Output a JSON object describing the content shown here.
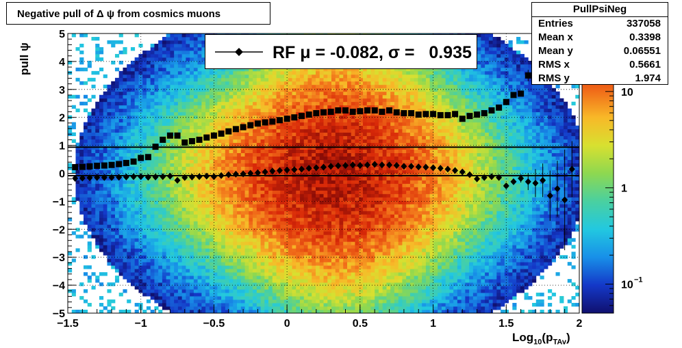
{
  "chart_data": {
    "type": "heatmap",
    "title": "Negative pull of Δ ψ from cosmics muons",
    "xlabel_main": "Log",
    "xlabel_sub": "10",
    "xlabel_rest": "(p",
    "xlabel_sub2": "TAv",
    "xlabel_close": ")",
    "ylabel": "pull ψ",
    "xlim": [
      -1.5,
      2
    ],
    "ylim": [
      -5,
      5
    ],
    "x_ticks": [
      -1.5,
      -1,
      -0.5,
      0,
      0.5,
      1,
      1.5,
      2
    ],
    "y_ticks": [
      -5,
      -4,
      -3,
      -2,
      -1,
      0,
      1,
      2,
      3,
      4,
      5
    ],
    "x_tick_labels": [
      "−1.5",
      "−1",
      "−0.5",
      "0",
      "0.5",
      "1",
      "1.5",
      "2"
    ],
    "y_tick_labels": [
      "−5",
      "−4",
      "−3",
      "−2",
      "−1",
      "0",
      "1",
      "2",
      "3",
      "4",
      "5"
    ],
    "color_scale": {
      "type": "log",
      "range": [
        0.05,
        40
      ],
      "tick_values": [
        0.1,
        1,
        10
      ],
      "tick_labels": [
        {
          "base": "10",
          "exp": "−1"
        },
        {
          "base": "1",
          "exp": ""
        },
        {
          "base": "10",
          "exp": ""
        }
      ]
    },
    "grid": true,
    "series": [
      {
        "marker": "diamond",
        "x": [
          -1.45,
          -1.4,
          -1.35,
          -1.3,
          -1.25,
          -1.2,
          -1.15,
          -1.1,
          -1.05,
          -1.0,
          -0.95,
          -0.9,
          -0.85,
          -0.8,
          -0.75,
          -0.7,
          -0.65,
          -0.6,
          -0.55,
          -0.5,
          -0.45,
          -0.4,
          -0.35,
          -0.3,
          -0.25,
          -0.2,
          -0.15,
          -0.1,
          -0.05,
          0.0,
          0.05,
          0.1,
          0.15,
          0.2,
          0.25,
          0.3,
          0.35,
          0.4,
          0.45,
          0.5,
          0.55,
          0.6,
          0.65,
          0.7,
          0.75,
          0.8,
          0.85,
          0.9,
          0.95,
          1.0,
          1.05,
          1.1,
          1.15,
          1.2,
          1.25,
          1.3,
          1.35,
          1.4,
          1.45,
          1.5,
          1.55,
          1.6,
          1.65,
          1.7,
          1.75,
          1.8,
          1.85,
          1.9,
          1.95
        ],
        "y": [
          -0.18,
          -0.17,
          -0.16,
          -0.15,
          -0.15,
          -0.15,
          -0.14,
          -0.13,
          -0.12,
          -0.12,
          -0.14,
          -0.13,
          -0.12,
          -0.1,
          -0.25,
          -0.15,
          -0.13,
          -0.12,
          -0.1,
          -0.12,
          -0.08,
          -0.05,
          -0.03,
          -0.02,
          0.0,
          0.02,
          0.05,
          0.08,
          0.1,
          0.12,
          0.13,
          0.15,
          0.18,
          0.2,
          0.22,
          0.25,
          0.27,
          0.28,
          0.3,
          0.28,
          0.3,
          0.32,
          0.3,
          0.3,
          0.28,
          0.25,
          0.25,
          0.23,
          0.22,
          0.2,
          0.18,
          0.15,
          0.1,
          0.05,
          -0.05,
          -0.2,
          -0.15,
          -0.12,
          -0.15,
          -0.45,
          -0.3,
          -0.18,
          -0.3,
          -0.35,
          -0.25,
          -0.8,
          -0.55,
          -0.95,
          0.15
        ],
        "y_err": [
          0,
          0,
          0,
          0,
          0,
          0,
          0,
          0,
          0,
          0,
          0,
          0,
          0,
          0,
          0,
          0,
          0,
          0,
          0,
          0,
          0,
          0,
          0,
          0,
          0,
          0,
          0,
          0,
          0,
          0,
          0,
          0,
          0,
          0,
          0,
          0,
          0,
          0,
          0,
          0,
          0,
          0,
          0,
          0,
          0,
          0,
          0,
          0,
          0,
          0,
          0,
          0,
          0,
          0,
          0,
          0,
          0,
          0,
          0,
          0.1,
          0.1,
          0.15,
          0.3,
          0.5,
          0.6,
          0.9,
          1.0,
          1.8,
          1.0
        ]
      },
      {
        "marker": "square",
        "x": [
          -1.45,
          -1.4,
          -1.35,
          -1.3,
          -1.25,
          -1.2,
          -1.15,
          -1.1,
          -1.05,
          -1.0,
          -0.95,
          -0.9,
          -0.85,
          -0.8,
          -0.75,
          -0.7,
          -0.65,
          -0.6,
          -0.55,
          -0.5,
          -0.45,
          -0.4,
          -0.35,
          -0.3,
          -0.25,
          -0.2,
          -0.15,
          -0.1,
          -0.05,
          0.0,
          0.05,
          0.1,
          0.15,
          0.2,
          0.25,
          0.3,
          0.35,
          0.4,
          0.45,
          0.5,
          0.55,
          0.6,
          0.65,
          0.7,
          0.75,
          0.8,
          0.85,
          0.9,
          0.95,
          1.0,
          1.05,
          1.1,
          1.15,
          1.2,
          1.25,
          1.3,
          1.35,
          1.4,
          1.45,
          1.5,
          1.55,
          1.6,
          1.65,
          1.7,
          1.75
        ],
        "y": [
          0.22,
          0.23,
          0.25,
          0.27,
          0.28,
          0.3,
          0.33,
          0.37,
          0.42,
          0.55,
          0.58,
          0.95,
          1.2,
          1.35,
          1.35,
          1.1,
          1.15,
          1.2,
          1.28,
          1.35,
          1.42,
          1.5,
          1.58,
          1.65,
          1.72,
          1.78,
          1.82,
          1.85,
          1.9,
          1.95,
          2.0,
          2.05,
          2.1,
          2.15,
          2.18,
          2.2,
          2.25,
          2.25,
          2.2,
          2.22,
          2.25,
          2.25,
          2.2,
          2.25,
          2.18,
          2.15,
          2.15,
          2.1,
          2.12,
          2.12,
          2.08,
          2.08,
          2.12,
          1.95,
          2.05,
          2.1,
          2.15,
          2.25,
          2.35,
          2.55,
          2.8,
          2.85,
          3.5,
          3.5,
          3.8
        ],
        "y_err": [
          0,
          0,
          0,
          0,
          0,
          0,
          0,
          0,
          0,
          0,
          0,
          0,
          0,
          0,
          0,
          0,
          0,
          0,
          0,
          0,
          0,
          0,
          0,
          0,
          0,
          0,
          0,
          0,
          0,
          0,
          0,
          0,
          0,
          0,
          0,
          0,
          0,
          0,
          0,
          0,
          0,
          0,
          0,
          0,
          0,
          0,
          0,
          0,
          0,
          0,
          0,
          0,
          0,
          0,
          0,
          0,
          0,
          0,
          0,
          0.05,
          0.05,
          0.1,
          0.2,
          0.25,
          0.35
        ]
      }
    ],
    "reference_lines": [
      0.935,
      -0.082
    ],
    "legend_text": "RF μ = -0.082, σ =   0.935",
    "legend_placement": "top-center"
  },
  "stats": {
    "name": "PullPsiNeg",
    "rows": [
      {
        "label": "Entries",
        "value": "337058"
      },
      {
        "label": "Mean x",
        "value": "0.3398"
      },
      {
        "label": "Mean y",
        "value": "0.06551"
      },
      {
        "label": "RMS x",
        "value": "0.5661"
      },
      {
        "label": "RMS y",
        "value": "1.974"
      }
    ]
  },
  "colors": {
    "frame": "#000000",
    "grid": "#000000",
    "background": "#ffffff"
  }
}
